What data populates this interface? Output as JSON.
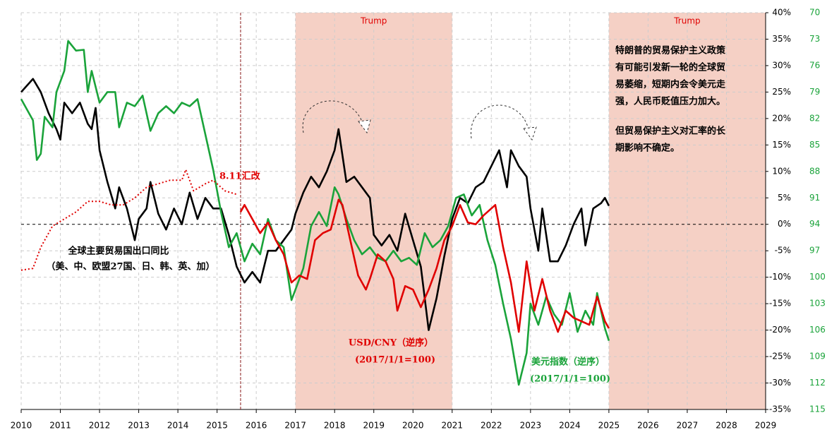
{
  "chart_data": {
    "type": "line",
    "xlim": [
      2010,
      2029
    ],
    "xticks": [
      2010,
      2011,
      2012,
      2013,
      2014,
      2015,
      2016,
      2017,
      2018,
      2019,
      2020,
      2021,
      2022,
      2023,
      2024,
      2025,
      2026,
      2027,
      2028,
      2029
    ],
    "ylim": [
      -35,
      40
    ],
    "yticks": [
      {
        "value": 40,
        "label": "40%"
      },
      {
        "value": 35,
        "label": "35%"
      },
      {
        "value": 30,
        "label": "30%"
      },
      {
        "value": 25,
        "label": "25%"
      },
      {
        "value": 20,
        "label": "20%"
      },
      {
        "value": 15,
        "label": "15%"
      },
      {
        "value": 10,
        "label": "10%"
      },
      {
        "value": 5,
        "label": "5%"
      },
      {
        "value": 0,
        "label": "0%"
      },
      {
        "value": -5,
        "label": "-5%"
      },
      {
        "value": -10,
        "label": "-10%"
      },
      {
        "value": -15,
        "label": "-15%"
      },
      {
        "value": -20,
        "label": "-20%"
      },
      {
        "value": -25,
        "label": "-25%"
      },
      {
        "value": -30,
        "label": "-30%"
      },
      {
        "value": -35,
        "label": "-35%"
      }
    ],
    "y2lim": [
      115,
      70
    ],
    "y2ticks": [
      70,
      73,
      76,
      79,
      82,
      85,
      88,
      91,
      94,
      97,
      100,
      103,
      106,
      109,
      112,
      115
    ],
    "y2_color": "#1aa33a",
    "grid": true,
    "bands": [
      {
        "from": 2017,
        "to": 2021,
        "label": "Trump",
        "color": "#f5d0c5"
      },
      {
        "from": 2025,
        "to": 2029,
        "label": "Trump",
        "color": "#f5d0c5"
      }
    ],
    "event": {
      "x": 2015.6,
      "label": "8.11汇改",
      "color": "#8b1a1a"
    },
    "note": [
      [
        "特朗普的贸易保护主义政策",
        "有可能引发新一轮的全球贸",
        "易萎缩，短期内会令美元走",
        "强，人民币贬值压力加大。"
      ],
      [
        "但贸易保护主义对汇率的长",
        "期影响不确定。"
      ]
    ],
    "series": [
      {
        "name": "全球主要贸易国出口同比",
        "name_note": "（美、中、欧盟27国、日、韩、英、加）",
        "color": "#000000",
        "x": [
          2010.0,
          2010.3,
          2010.5,
          2010.7,
          2010.9,
          2011.0,
          2011.1,
          2011.3,
          2011.5,
          2011.7,
          2011.8,
          2011.9,
          2012.0,
          2012.2,
          2012.4,
          2012.5,
          2012.7,
          2012.9,
          2013.0,
          2013.2,
          2013.3,
          2013.5,
          2013.7,
          2013.9,
          2014.1,
          2014.3,
          2014.5,
          2014.7,
          2014.9,
          2015.1,
          2015.3,
          2015.5,
          2015.7,
          2015.9,
          2016.1,
          2016.3,
          2016.5,
          2016.7,
          2016.9,
          2017.0,
          2017.2,
          2017.4,
          2017.6,
          2017.8,
          2018.0,
          2018.1,
          2018.3,
          2018.5,
          2018.7,
          2018.9,
          2019.0,
          2019.2,
          2019.4,
          2019.6,
          2019.8,
          2020.0,
          2020.2,
          2020.4,
          2020.6,
          2020.8,
          2021.0,
          2021.2,
          2021.4,
          2021.6,
          2021.8,
          2022.0,
          2022.2,
          2022.4,
          2022.5,
          2022.7,
          2022.9,
          2023.0,
          2023.2,
          2023.3,
          2023.5,
          2023.7,
          2023.9,
          2024.1,
          2024.3,
          2024.4,
          2024.6,
          2024.8,
          2024.9,
          2025.0
        ],
        "values": [
          25,
          27.5,
          25,
          21,
          18,
          16,
          23,
          21,
          23,
          19,
          18,
          22,
          14,
          8,
          3,
          7,
          3,
          -3,
          1,
          3,
          8,
          2,
          -1,
          3,
          0,
          6,
          1,
          5,
          3,
          3,
          -2,
          -8,
          -11,
          -9,
          -11,
          -5,
          -5,
          -3,
          -1,
          2,
          6,
          9,
          7,
          10,
          14,
          18,
          8,
          9,
          7,
          5,
          -2,
          -4,
          -2,
          -5,
          2,
          -3,
          -8,
          -20,
          -14,
          -6,
          1,
          5,
          4,
          7,
          8,
          11,
          14,
          7,
          14,
          11,
          9,
          3,
          -5,
          3,
          -7,
          -7,
          -4,
          0,
          3,
          -4,
          3,
          4,
          5,
          3.5
        ]
      },
      {
        "name": "美元指数（逆序）",
        "name_note": "(2017/1/1=100)",
        "color": "#1aa33a",
        "axis": "y2",
        "x": [
          2010.0,
          2010.3,
          2010.4,
          2010.5,
          2010.6,
          2010.8,
          2010.9,
          2011.1,
          2011.2,
          2011.4,
          2011.6,
          2011.7,
          2011.8,
          2012.0,
          2012.2,
          2012.4,
          2012.5,
          2012.7,
          2012.9,
          2013.1,
          2013.3,
          2013.5,
          2013.7,
          2013.9,
          2014.1,
          2014.3,
          2014.5,
          2014.7,
          2014.9,
          2015.1,
          2015.3,
          2015.5,
          2015.7,
          2015.9,
          2016.1,
          2016.3,
          2016.5,
          2016.7,
          2016.9,
          2017.0,
          2017.2,
          2017.4,
          2017.6,
          2017.8,
          2018.0,
          2018.1,
          2018.3,
          2018.5,
          2018.7,
          2018.9,
          2019.1,
          2019.3,
          2019.5,
          2019.7,
          2019.9,
          2020.1,
          2020.3,
          2020.5,
          2020.7,
          2020.9,
          2021.0,
          2021.1,
          2021.3,
          2021.5,
          2021.7,
          2021.9,
          2022.1,
          2022.3,
          2022.5,
          2022.7,
          2022.9,
          2023.0,
          2023.2,
          2023.4,
          2023.6,
          2023.8,
          2024.0,
          2024.2,
          2024.4,
          2024.6,
          2024.7,
          2024.9,
          2025.0
        ],
        "values": [
          79.8,
          82.2,
          86.7,
          86,
          81.8,
          83,
          79,
          76.6,
          73.2,
          74.3,
          74.2,
          79,
          76.6,
          80.2,
          79,
          79,
          83,
          80.2,
          80.6,
          79.4,
          83.4,
          81.4,
          80.6,
          81.4,
          80.2,
          80.6,
          79.8,
          83.8,
          87.8,
          92.6,
          96.6,
          95,
          98.2,
          96.2,
          97.4,
          93.4,
          95.8,
          96.6,
          102.6,
          101.4,
          99,
          94.2,
          92.6,
          94.2,
          89.8,
          90.6,
          93.4,
          95.8,
          97.4,
          96.6,
          97.8,
          98.2,
          97,
          98.2,
          97.8,
          98.6,
          95,
          96.6,
          95.8,
          94.2,
          92.6,
          91,
          90.6,
          93,
          91.8,
          95.8,
          98.6,
          103,
          107,
          112.2,
          108.6,
          103,
          105.4,
          102.2,
          104.2,
          105.4,
          101.8,
          106.2,
          103.8,
          105.4,
          101.8,
          105.8,
          107.2
        ]
      },
      {
        "color": "#e00000",
        "axis": "y2",
        "style": "dotted",
        "x": [
          2010.0,
          2010.3,
          2010.5,
          2010.8,
          2011.1,
          2011.4,
          2011.7,
          2012.0,
          2012.3,
          2012.6,
          2012.9,
          2013.2,
          2013.5,
          2013.8,
          2014.1,
          2014.2,
          2014.4,
          2014.7,
          2014.9,
          2015.2,
          2015.5
        ],
        "values": [
          99.2,
          99,
          96.6,
          94.2,
          93.4,
          92.6,
          91.4,
          91.4,
          91.8,
          91.8,
          91,
          89.8,
          89.4,
          89,
          89,
          87.8,
          90.2,
          89.4,
          89,
          90.2,
          90.6
        ]
      },
      {
        "name": "USD/CNY（逆序）",
        "name_note": "(2017/1/1=100)",
        "color": "#e00000",
        "axis": "y2",
        "x": [
          2015.6,
          2015.7,
          2015.9,
          2016.1,
          2016.3,
          2016.5,
          2016.7,
          2016.9,
          2017.1,
          2017.3,
          2017.5,
          2017.7,
          2017.9,
          2018.1,
          2018.2,
          2018.4,
          2018.6,
          2018.8,
          2018.9,
          2019.1,
          2019.3,
          2019.5,
          2019.6,
          2019.8,
          2020.0,
          2020.2,
          2020.4,
          2020.6,
          2020.8,
          2021.0,
          2021.2,
          2021.4,
          2021.6,
          2021.8,
          2022.0,
          2022.1,
          2022.3,
          2022.5,
          2022.7,
          2022.9,
          2023.1,
          2023.3,
          2023.5,
          2023.7,
          2023.9,
          2024.1,
          2024.3,
          2024.5,
          2024.7,
          2024.9,
          2025.0
        ],
        "values": [
          92.6,
          91.8,
          93.4,
          95,
          93.8,
          95.8,
          97.4,
          100.6,
          99.8,
          100.2,
          95.8,
          95,
          94.6,
          91.2,
          91.8,
          95.8,
          99.8,
          101.4,
          100.2,
          97.4,
          98.2,
          100.2,
          103.8,
          101,
          101.4,
          103.4,
          101.4,
          99,
          95.8,
          94.2,
          91.8,
          93.8,
          94,
          93,
          92.2,
          91.8,
          96.6,
          100.6,
          106.2,
          98.2,
          103.8,
          100.2,
          103.8,
          106.2,
          103.8,
          104.6,
          105,
          105.4,
          102.2,
          105,
          105.8
        ]
      }
    ]
  }
}
